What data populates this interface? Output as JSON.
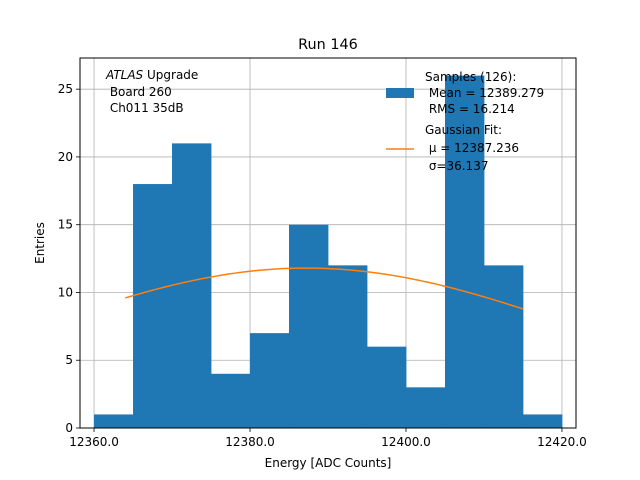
{
  "chart_data": {
    "type": "bar",
    "title": "Run 146",
    "xlabel": "Energy [ADC Counts]",
    "ylabel": "Entries",
    "xlim": [
      12358.2,
      12421.8
    ],
    "ylim": [
      0,
      27.3
    ],
    "grid": true,
    "xticks": [
      {
        "value": 12360,
        "label": "12360.0"
      },
      {
        "value": 12380,
        "label": "12380.0"
      },
      {
        "value": 12400,
        "label": "12400.0"
      },
      {
        "value": 12420,
        "label": "12420.0"
      }
    ],
    "yticks": [
      {
        "value": 0,
        "label": "0"
      },
      {
        "value": 5,
        "label": "5"
      },
      {
        "value": 10,
        "label": "10"
      },
      {
        "value": 15,
        "label": "15"
      },
      {
        "value": 20,
        "label": "20"
      },
      {
        "value": 25,
        "label": "25"
      }
    ],
    "bins": {
      "edges": [
        12360,
        12365,
        12370,
        12375,
        12380,
        12385,
        12390,
        12395,
        12400,
        12405,
        12410,
        12415,
        12420
      ],
      "counts": [
        1,
        18,
        21,
        4,
        7,
        15,
        12,
        6,
        3,
        26,
        12,
        1
      ],
      "color": "#1f77b4"
    },
    "fit": {
      "type": "gaussian",
      "amplitude": 11.8,
      "mu": 12387.236,
      "sigma": 36.137,
      "x_range": [
        12364,
        12415
      ],
      "color": "#ff7f0e"
    },
    "annotation": {
      "line1_italic": "ATLAS",
      "line1_rest": " Upgrade",
      "line2": " Board 260",
      "line3": " Ch011 35dB"
    },
    "legend": {
      "placement": "upper-right",
      "entries": [
        {
          "kind": "patch",
          "color": "#1f77b4",
          "lines": [
            "Samples (126):",
            " Mean = 12389.279",
            " RMS = 16.214"
          ]
        },
        {
          "kind": "line",
          "color": "#ff7f0e",
          "lines": [
            "Gaussian Fit:",
            " μ = 12387.236",
            " σ=36.137"
          ]
        }
      ]
    }
  }
}
